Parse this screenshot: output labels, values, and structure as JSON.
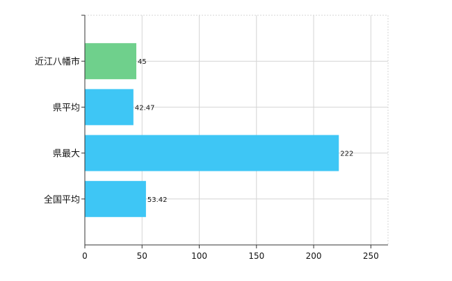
{
  "chart_data": {
    "type": "bar",
    "orientation": "horizontal",
    "categories": [
      "近江八幡市",
      "県平均",
      "県最大",
      "全国平均"
    ],
    "values": [
      45,
      42.47,
      222,
      53.42
    ],
    "value_labels": [
      "45",
      "42.47",
      "222",
      "53.42"
    ],
    "bar_colors": [
      "#6fd08c",
      "#3ec6f5",
      "#3ec6f5",
      "#3ec6f5"
    ],
    "xlim": [
      0,
      265
    ],
    "xticks": [
      0,
      50,
      100,
      150,
      200,
      250
    ],
    "xtick_labels": [
      "0",
      "50",
      "100",
      "150",
      "200",
      "250"
    ],
    "grid": true,
    "legend": "none",
    "title": "",
    "xlabel": "",
    "ylabel": ""
  },
  "colors": {
    "grid": "#d4d4d4",
    "axis": "#333333",
    "text": "#111111"
  }
}
